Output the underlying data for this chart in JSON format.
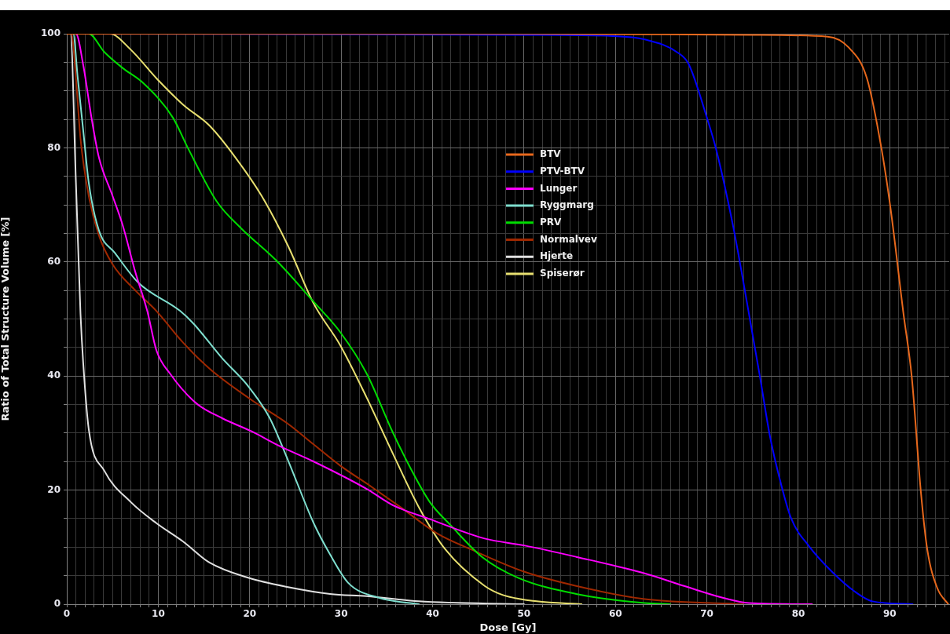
{
  "chart_data": {
    "type": "line",
    "xlabel": "Dose [Gy]",
    "ylabel": "Ratio of Total Structure Volume [%]",
    "xlim": [
      0,
      96.5
    ],
    "ylim": [
      0,
      100
    ],
    "xticks": [
      0,
      {
        "value": 1,
        "label": null
      },
      {
        "value": 2,
        "label": null
      },
      {
        "value": 3,
        "label": null
      },
      {
        "value": 4,
        "label": null
      },
      {
        "value": 5,
        "label": null
      },
      {
        "value": 6,
        "label": null
      },
      {
        "value": 7,
        "label": null
      },
      {
        "value": 8,
        "label": null
      },
      {
        "value": 9,
        "label": null
      },
      10,
      {
        "value": 11,
        "label": null
      },
      {
        "value": 12,
        "label": null
      },
      {
        "value": 13,
        "label": null
      },
      {
        "value": 14,
        "label": null
      },
      {
        "value": 15,
        "label": null
      },
      {
        "value": 16,
        "label": null
      },
      {
        "value": 17,
        "label": null
      },
      {
        "value": 18,
        "label": null
      },
      {
        "value": 19,
        "label": null
      },
      20,
      {
        "value": 21,
        "label": null
      },
      {
        "value": 22,
        "label": null
      },
      {
        "value": 23,
        "label": null
      },
      {
        "value": 24,
        "label": null
      },
      {
        "value": 25,
        "label": null
      },
      {
        "value": 26,
        "label": null
      },
      {
        "value": 27,
        "label": null
      },
      {
        "value": 28,
        "label": null
      },
      {
        "value": 29,
        "label": null
      },
      30,
      {
        "value": 31,
        "label": null
      },
      {
        "value": 32,
        "label": null
      },
      {
        "value": 33,
        "label": null
      },
      {
        "value": 34,
        "label": null
      },
      {
        "value": 35,
        "label": null
      },
      {
        "value": 36,
        "label": null
      },
      {
        "value": 37,
        "label": null
      },
      {
        "value": 38,
        "label": null
      },
      {
        "value": 39,
        "label": null
      },
      40,
      {
        "value": 41,
        "label": null
      },
      {
        "value": 42,
        "label": null
      },
      {
        "value": 43,
        "label": null
      },
      {
        "value": 44,
        "label": null
      },
      {
        "value": 45,
        "label": null
      },
      {
        "value": 46,
        "label": null
      },
      {
        "value": 47,
        "label": null
      },
      {
        "value": 48,
        "label": null
      },
      {
        "value": 49,
        "label": null
      },
      50,
      {
        "value": 51,
        "label": null
      },
      {
        "value": 52,
        "label": null
      },
      {
        "value": 53,
        "label": null
      },
      {
        "value": 54,
        "label": null
      },
      {
        "value": 55,
        "label": null
      },
      {
        "value": 56,
        "label": null
      },
      {
        "value": 57,
        "label": null
      },
      {
        "value": 58,
        "label": null
      },
      {
        "value": 59,
        "label": null
      },
      60,
      {
        "value": 61,
        "label": null
      },
      {
        "value": 62,
        "label": null
      },
      {
        "value": 63,
        "label": null
      },
      {
        "value": 64,
        "label": null
      },
      {
        "value": 65,
        "label": null
      },
      {
        "value": 66,
        "label": null
      },
      {
        "value": 67,
        "label": null
      },
      {
        "value": 68,
        "label": null
      },
      {
        "value": 69,
        "label": null
      },
      70,
      {
        "value": 71,
        "label": null
      },
      {
        "value": 72,
        "label": null
      },
      {
        "value": 73,
        "label": null
      },
      {
        "value": 74,
        "label": null
      },
      {
        "value": 75,
        "label": null
      },
      {
        "value": 76,
        "label": null
      },
      {
        "value": 77,
        "label": null
      },
      {
        "value": 78,
        "label": null
      },
      {
        "value": 79,
        "label": null
      },
      80,
      {
        "value": 81,
        "label": null
      },
      {
        "value": 82,
        "label": null
      },
      {
        "value": 83,
        "label": null
      },
      {
        "value": 84,
        "label": null
      },
      {
        "value": 85,
        "label": null
      },
      {
        "value": 86,
        "label": null
      },
      {
        "value": 87,
        "label": null
      },
      {
        "value": 88,
        "label": null
      },
      {
        "value": 89,
        "label": null
      },
      90,
      {
        "value": 91,
        "label": null
      },
      {
        "value": 92,
        "label": null
      },
      {
        "value": 93,
        "label": null
      },
      {
        "value": 94,
        "label": null
      },
      {
        "value": 95,
        "label": null
      },
      {
        "value": 96,
        "label": null
      }
    ],
    "yticks": [
      0,
      {
        "value": 5,
        "label": null
      },
      {
        "value": 10,
        "label": null
      },
      {
        "value": 15,
        "label": null
      },
      20,
      {
        "value": 25,
        "label": null
      },
      {
        "value": 30,
        "label": null
      },
      {
        "value": 35,
        "label": null
      },
      40,
      {
        "value": 45,
        "label": null
      },
      {
        "value": 50,
        "label": null
      },
      {
        "value": 55,
        "label": null
      },
      60,
      {
        "value": 65,
        "label": null
      },
      {
        "value": 70,
        "label": null
      },
      {
        "value": 75,
        "label": null
      },
      80,
      {
        "value": 85,
        "label": null
      },
      {
        "value": 90,
        "label": null
      },
      {
        "value": 95,
        "label": null
      },
      100
    ],
    "grid": true,
    "legend": "top",
    "marker": "none",
    "line_style": "solid",
    "series": [
      {
        "name": "BTV",
        "color": "#e8681c",
        "x": [
          0,
          50,
          75,
          83.2,
          85.5,
          87.5,
          89.1,
          90.1,
          91.5,
          92.4,
          93.4,
          94.1,
          95.2,
          96.4
        ],
        "values": [
          100,
          100,
          99.8,
          99.5,
          97.6,
          92.2,
          79.8,
          69.2,
          50.9,
          39.9,
          19.7,
          9.6,
          2.8,
          0
        ]
      },
      {
        "name": "PTV-BTV",
        "color": "#0000ff",
        "x": [
          0,
          50,
          59.7,
          63.2,
          66.9,
          68,
          70,
          71,
          72.9,
          74.6,
          75.8,
          76.9,
          78.1,
          79.2,
          81.2,
          83.8,
          86.1,
          88.1,
          92.5
        ],
        "values": [
          100,
          99.8,
          99.6,
          99,
          96.6,
          94.7,
          85.3,
          79.8,
          66,
          50.9,
          39.9,
          29.4,
          21.1,
          15.1,
          10.1,
          5.5,
          2.3,
          0.5,
          0
        ]
      },
      {
        "name": "Lunger",
        "color": "#ff00ff",
        "x": [
          0,
          1,
          1.8,
          2.7,
          3.5,
          5,
          6.1,
          7.5,
          8.8,
          9.8,
          11.3,
          14.1,
          17,
          20.2,
          23.3,
          27,
          32.8,
          35.6,
          39.7,
          45.7,
          50,
          55.7,
          63.2,
          67.5,
          71.8,
          74.6,
          81.5
        ],
        "values": [
          100,
          100,
          94.5,
          85.3,
          78.4,
          71.6,
          66.5,
          58.2,
          51.4,
          44.5,
          40.4,
          35.3,
          32.6,
          30.3,
          27.7,
          25,
          20.2,
          17.4,
          14.9,
          11.5,
          10.3,
          8.3,
          5.4,
          3.2,
          1.1,
          0.2,
          0
        ]
      },
      {
        "name": "Ryggmarg",
        "color": "#7fdfcf",
        "x": [
          0,
          0.7,
          1.2,
          1.8,
          2.4,
          3.5,
          5.3,
          7.8,
          12.4,
          13.9,
          17,
          19.9,
          22.2,
          24.2,
          27,
          28.8,
          30.8,
          34.2,
          38.5
        ],
        "values": [
          100,
          100,
          92.2,
          83,
          73.9,
          65.6,
          61.5,
          56.4,
          51.4,
          49.1,
          43.1,
          38.1,
          32.6,
          25.2,
          14.2,
          8.7,
          3.7,
          1.1,
          0
        ]
      },
      {
        "name": "PRV",
        "color": "#00dd00",
        "x": [
          0,
          2.4,
          4.1,
          6.1,
          8.4,
          11.6,
          13.3,
          16.4,
          19,
          23,
          27,
          29.9,
          32.8,
          35.6,
          37.6,
          39.7,
          42,
          45.4,
          49.4,
          55.7,
          63.2,
          66
        ],
        "values": [
          100,
          100,
          96.8,
          94,
          91.3,
          85.3,
          79.8,
          70.6,
          66,
          60.1,
          53,
          47.7,
          40.4,
          30.3,
          23.8,
          17.9,
          13.8,
          8.3,
          4.6,
          1.8,
          0.2,
          0
        ]
      },
      {
        "name": "Normalvev",
        "color": "#a02800",
        "x": [
          0,
          0.5,
          1,
          1.5,
          2.4,
          3.5,
          5,
          7.5,
          9.8,
          12.7,
          15.6,
          20.2,
          24.2,
          27,
          29.9,
          33.3,
          36.5,
          40.5,
          44.2,
          50,
          55.7,
          63.2,
          74
        ],
        "values": [
          100,
          100,
          92.2,
          81.6,
          71.6,
          64.7,
          59.6,
          55,
          51.4,
          45.9,
          41.3,
          35.8,
          31.6,
          28,
          24.3,
          20.6,
          17,
          12.4,
          9.6,
          5.7,
          3.2,
          0.9,
          0
        ]
      },
      {
        "name": "Hjerte",
        "color": "#e0e0e0",
        "x": [
          0,
          0.4,
          1,
          1.5,
          1.8,
          2.4,
          4.1,
          7,
          9.8,
          12.7,
          15.6,
          19.9,
          24.2,
          28.8,
          32.8,
          38.5,
          50
        ],
        "values": [
          100,
          100,
          73.9,
          50.9,
          42.2,
          30.7,
          23.4,
          17.9,
          14.2,
          11,
          7.3,
          4.6,
          3,
          1.8,
          1.4,
          0.5,
          0
        ]
      },
      {
        "name": "Spiserør",
        "color": "#e8e070",
        "x": [
          0,
          4.7,
          7,
          9.8,
          12.7,
          15.6,
          18.4,
          21.3,
          24.2,
          27,
          29.9,
          32.8,
          35.6,
          38.5,
          41.4,
          45.7,
          47.7,
          51.4,
          56.3
        ],
        "values": [
          100,
          100,
          97.2,
          92.2,
          87.6,
          83.9,
          78.4,
          71.6,
          62.8,
          52.7,
          45.4,
          36.2,
          26.6,
          17,
          9.6,
          3.2,
          1.6,
          0.5,
          0
        ]
      }
    ]
  }
}
